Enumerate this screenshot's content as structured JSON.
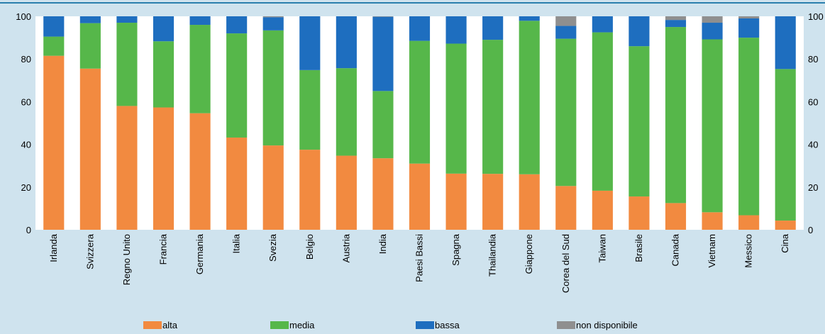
{
  "chart_data": {
    "type": "bar",
    "stacked": true,
    "categories": [
      "Irlanda",
      "Svizzera",
      "Regno Unito",
      "Francia",
      "Germania",
      "Italia",
      "Svezia",
      "Belgio",
      "Austria",
      "India",
      "Paesi Bassi",
      "Spagna",
      "Thailandia",
      "Giappone",
      "Corea del Sud",
      "Taiwan",
      "Brasile",
      "Canada",
      "Vietnam",
      "Messico",
      "Cina"
    ],
    "series": [
      {
        "name": "alta",
        "color": "#f28a40",
        "values": [
          81.5,
          75.5,
          58,
          57.3,
          54.6,
          43.2,
          39.5,
          37.5,
          34.7,
          33.5,
          31,
          26.3,
          26.2,
          26,
          20.5,
          18.3,
          15.6,
          12.5,
          8.2,
          6.8,
          4.3
        ]
      },
      {
        "name": "media",
        "color": "#56b74a",
        "values": [
          9,
          21.3,
          39,
          31,
          41.4,
          48.8,
          53.9,
          37.3,
          41,
          31.5,
          57.5,
          60.9,
          62.8,
          71.9,
          69,
          74.2,
          70.4,
          82.5,
          81,
          83.2,
          71
        ]
      },
      {
        "name": "bassa",
        "color": "#1e6ebf",
        "values": [
          9.5,
          3.2,
          3,
          11.7,
          4,
          8,
          6.2,
          25.2,
          24.3,
          34.8,
          11.5,
          12.8,
          11,
          2.1,
          6,
          7.5,
          14,
          3.3,
          7.8,
          9,
          24.7
        ]
      },
      {
        "name": "non disponibile",
        "color": "#8f8f8f",
        "values": [
          0,
          0,
          0,
          0,
          0,
          0,
          0.4,
          0,
          0,
          0.2,
          0,
          0,
          0,
          0,
          4.5,
          0,
          0,
          1.7,
          3,
          1,
          0
        ]
      }
    ],
    "yticks": [
      0,
      20,
      40,
      60,
      80,
      100
    ],
    "ylim": [
      0,
      100
    ],
    "legend_position": "bottom",
    "grid": false
  },
  "colors": {
    "background": "#cfe3ee",
    "plot_background": "#ffffff",
    "top_rule": "#2b7fad"
  }
}
